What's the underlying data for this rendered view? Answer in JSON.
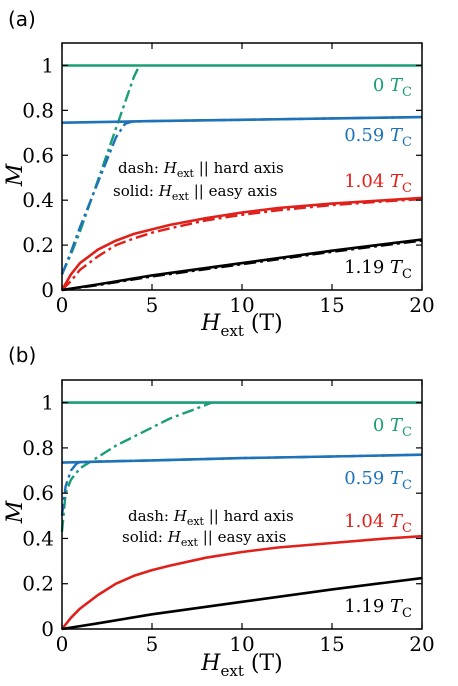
{
  "chart_data": [
    {
      "panel_label": "(a)",
      "type": "line",
      "xlabel": {
        "main": "H",
        "sub": "ext",
        "unit": " (T)"
      },
      "ylabel": "M",
      "xlim": [
        0,
        20
      ],
      "ylim": [
        0,
        1.1
      ],
      "xticks": [
        "0",
        "5",
        "10",
        "15",
        "20"
      ],
      "yticks": [
        "0",
        "0.2",
        "0.4",
        "0.6",
        "0.8",
        "1"
      ],
      "legend_note": {
        "dash_prefix": "dash: ",
        "dash_main": "H",
        "dash_sub": "ext",
        "dash_suffix": " || hard axis",
        "solid_prefix": "solid: ",
        "solid_main": "H",
        "solid_sub": "ext",
        "solid_suffix": " || easy axis"
      },
      "series": [
        {
          "label_num": "0",
          "label_sub": "C",
          "color": "#1a9e77",
          "solid": {
            "x": [
              0,
              20
            ],
            "y": [
              1.0,
              1.0
            ]
          },
          "dash": {
            "x": [
              0,
              0.5,
              1,
              2,
              3,
              4,
              4.3
            ],
            "y": [
              0.07,
              0.16,
              0.26,
              0.49,
              0.72,
              0.95,
              1.0
            ]
          }
        },
        {
          "label_num": "0.59",
          "label_sub": "C",
          "color": "#1e72b8",
          "solid": {
            "x": [
              0,
              5,
              10,
              15,
              20
            ],
            "y": [
              0.745,
              0.752,
              0.758,
              0.764,
              0.77
            ]
          },
          "dash": {
            "x": [
              0,
              0.5,
              1,
              1.5,
              2,
              2.5,
              3,
              3.5,
              3.9,
              5,
              10,
              15,
              20
            ],
            "y": [
              0.07,
              0.17,
              0.28,
              0.38,
              0.48,
              0.58,
              0.68,
              0.74,
              0.75,
              0.752,
              0.758,
              0.764,
              0.77
            ]
          }
        },
        {
          "label_num": "1.04",
          "label_sub": "C",
          "color": "#e0201b",
          "solid": {
            "x": [
              0,
              0.5,
              1,
              2,
              3,
              4,
              5,
              6,
              8,
              10,
              12,
              15,
              18,
              20
            ],
            "y": [
              0,
              0.07,
              0.12,
              0.18,
              0.22,
              0.25,
              0.27,
              0.29,
              0.32,
              0.345,
              0.365,
              0.385,
              0.4,
              0.41
            ]
          },
          "dash": {
            "x": [
              0,
              0.5,
              1,
              2,
              3,
              4,
              5,
              6,
              8,
              10,
              12,
              15,
              18,
              20
            ],
            "y": [
              0,
              0.04,
              0.09,
              0.15,
              0.2,
              0.23,
              0.255,
              0.275,
              0.31,
              0.335,
              0.355,
              0.378,
              0.395,
              0.405
            ]
          }
        },
        {
          "label_num": "1.19",
          "label_sub": "C",
          "color": "#000000",
          "solid": {
            "x": [
              0,
              2,
              5,
              10,
              15,
              20
            ],
            "y": [
              0,
              0.025,
              0.065,
              0.12,
              0.175,
              0.225
            ]
          },
          "dash": {
            "x": [
              0,
              2,
              5,
              10,
              15,
              20
            ],
            "y": [
              0,
              0.022,
              0.06,
              0.115,
              0.17,
              0.22
            ]
          }
        }
      ]
    },
    {
      "panel_label": "(b)",
      "type": "line",
      "xlabel": {
        "main": "H",
        "sub": "ext",
        "unit": " (T)"
      },
      "ylabel": "M",
      "xlim": [
        0,
        20
      ],
      "ylim": [
        0,
        1.1
      ],
      "xticks": [
        "0",
        "5",
        "10",
        "15",
        "20"
      ],
      "yticks": [
        "0",
        "0.2",
        "0.4",
        "0.6",
        "0.8",
        "1"
      ],
      "legend_note": {
        "dash_prefix": "dash: ",
        "dash_main": "H",
        "dash_sub": "ext",
        "dash_suffix": " || hard axis",
        "solid_prefix": "solid: ",
        "solid_main": "H",
        "solid_sub": "ext",
        "solid_suffix": " || easy axis"
      },
      "series": [
        {
          "label_num": "0",
          "label_sub": "C",
          "color": "#1a9e77",
          "solid": {
            "x": [
              0,
              20
            ],
            "y": [
              1.0,
              1.0
            ]
          },
          "dash": {
            "x": [
              0,
              0.2,
              0.5,
              1,
              2,
              3,
              4,
              5,
              6,
              7,
              8,
              8.3
            ],
            "y": [
              0.43,
              0.6,
              0.66,
              0.71,
              0.76,
              0.81,
              0.85,
              0.89,
              0.93,
              0.96,
              0.99,
              1.0
            ]
          }
        },
        {
          "label_num": "0.59",
          "label_sub": "C",
          "color": "#1e72b8",
          "solid": {
            "x": [
              0,
              5,
              10,
              15,
              20
            ],
            "y": [
              0.735,
              0.745,
              0.755,
              0.762,
              0.77
            ]
          },
          "dash": {
            "x": [
              0,
              0.2,
              0.5,
              0.8,
              1,
              2,
              5,
              10,
              15,
              20
            ],
            "y": [
              0.5,
              0.63,
              0.7,
              0.73,
              0.737,
              0.74,
              0.745,
              0.755,
              0.762,
              0.77
            ]
          }
        },
        {
          "label_num": "1.04",
          "label_sub": "C",
          "color": "#e0201b",
          "solid": {
            "x": [
              0,
              0.5,
              1,
              2,
              3,
              4,
              5,
              6,
              8,
              10,
              12,
              15,
              18,
              20
            ],
            "y": [
              0,
              0.05,
              0.09,
              0.15,
              0.2,
              0.235,
              0.26,
              0.28,
              0.315,
              0.34,
              0.36,
              0.38,
              0.4,
              0.41
            ]
          },
          "dash": {
            "x": [],
            "y": []
          }
        },
        {
          "label_num": "1.19",
          "label_sub": "C",
          "color": "#000000",
          "solid": {
            "x": [
              0,
              2,
              5,
              10,
              15,
              20
            ],
            "y": [
              0,
              0.025,
              0.065,
              0.12,
              0.175,
              0.225
            ]
          },
          "dash": {
            "x": [],
            "y": []
          }
        }
      ]
    }
  ]
}
